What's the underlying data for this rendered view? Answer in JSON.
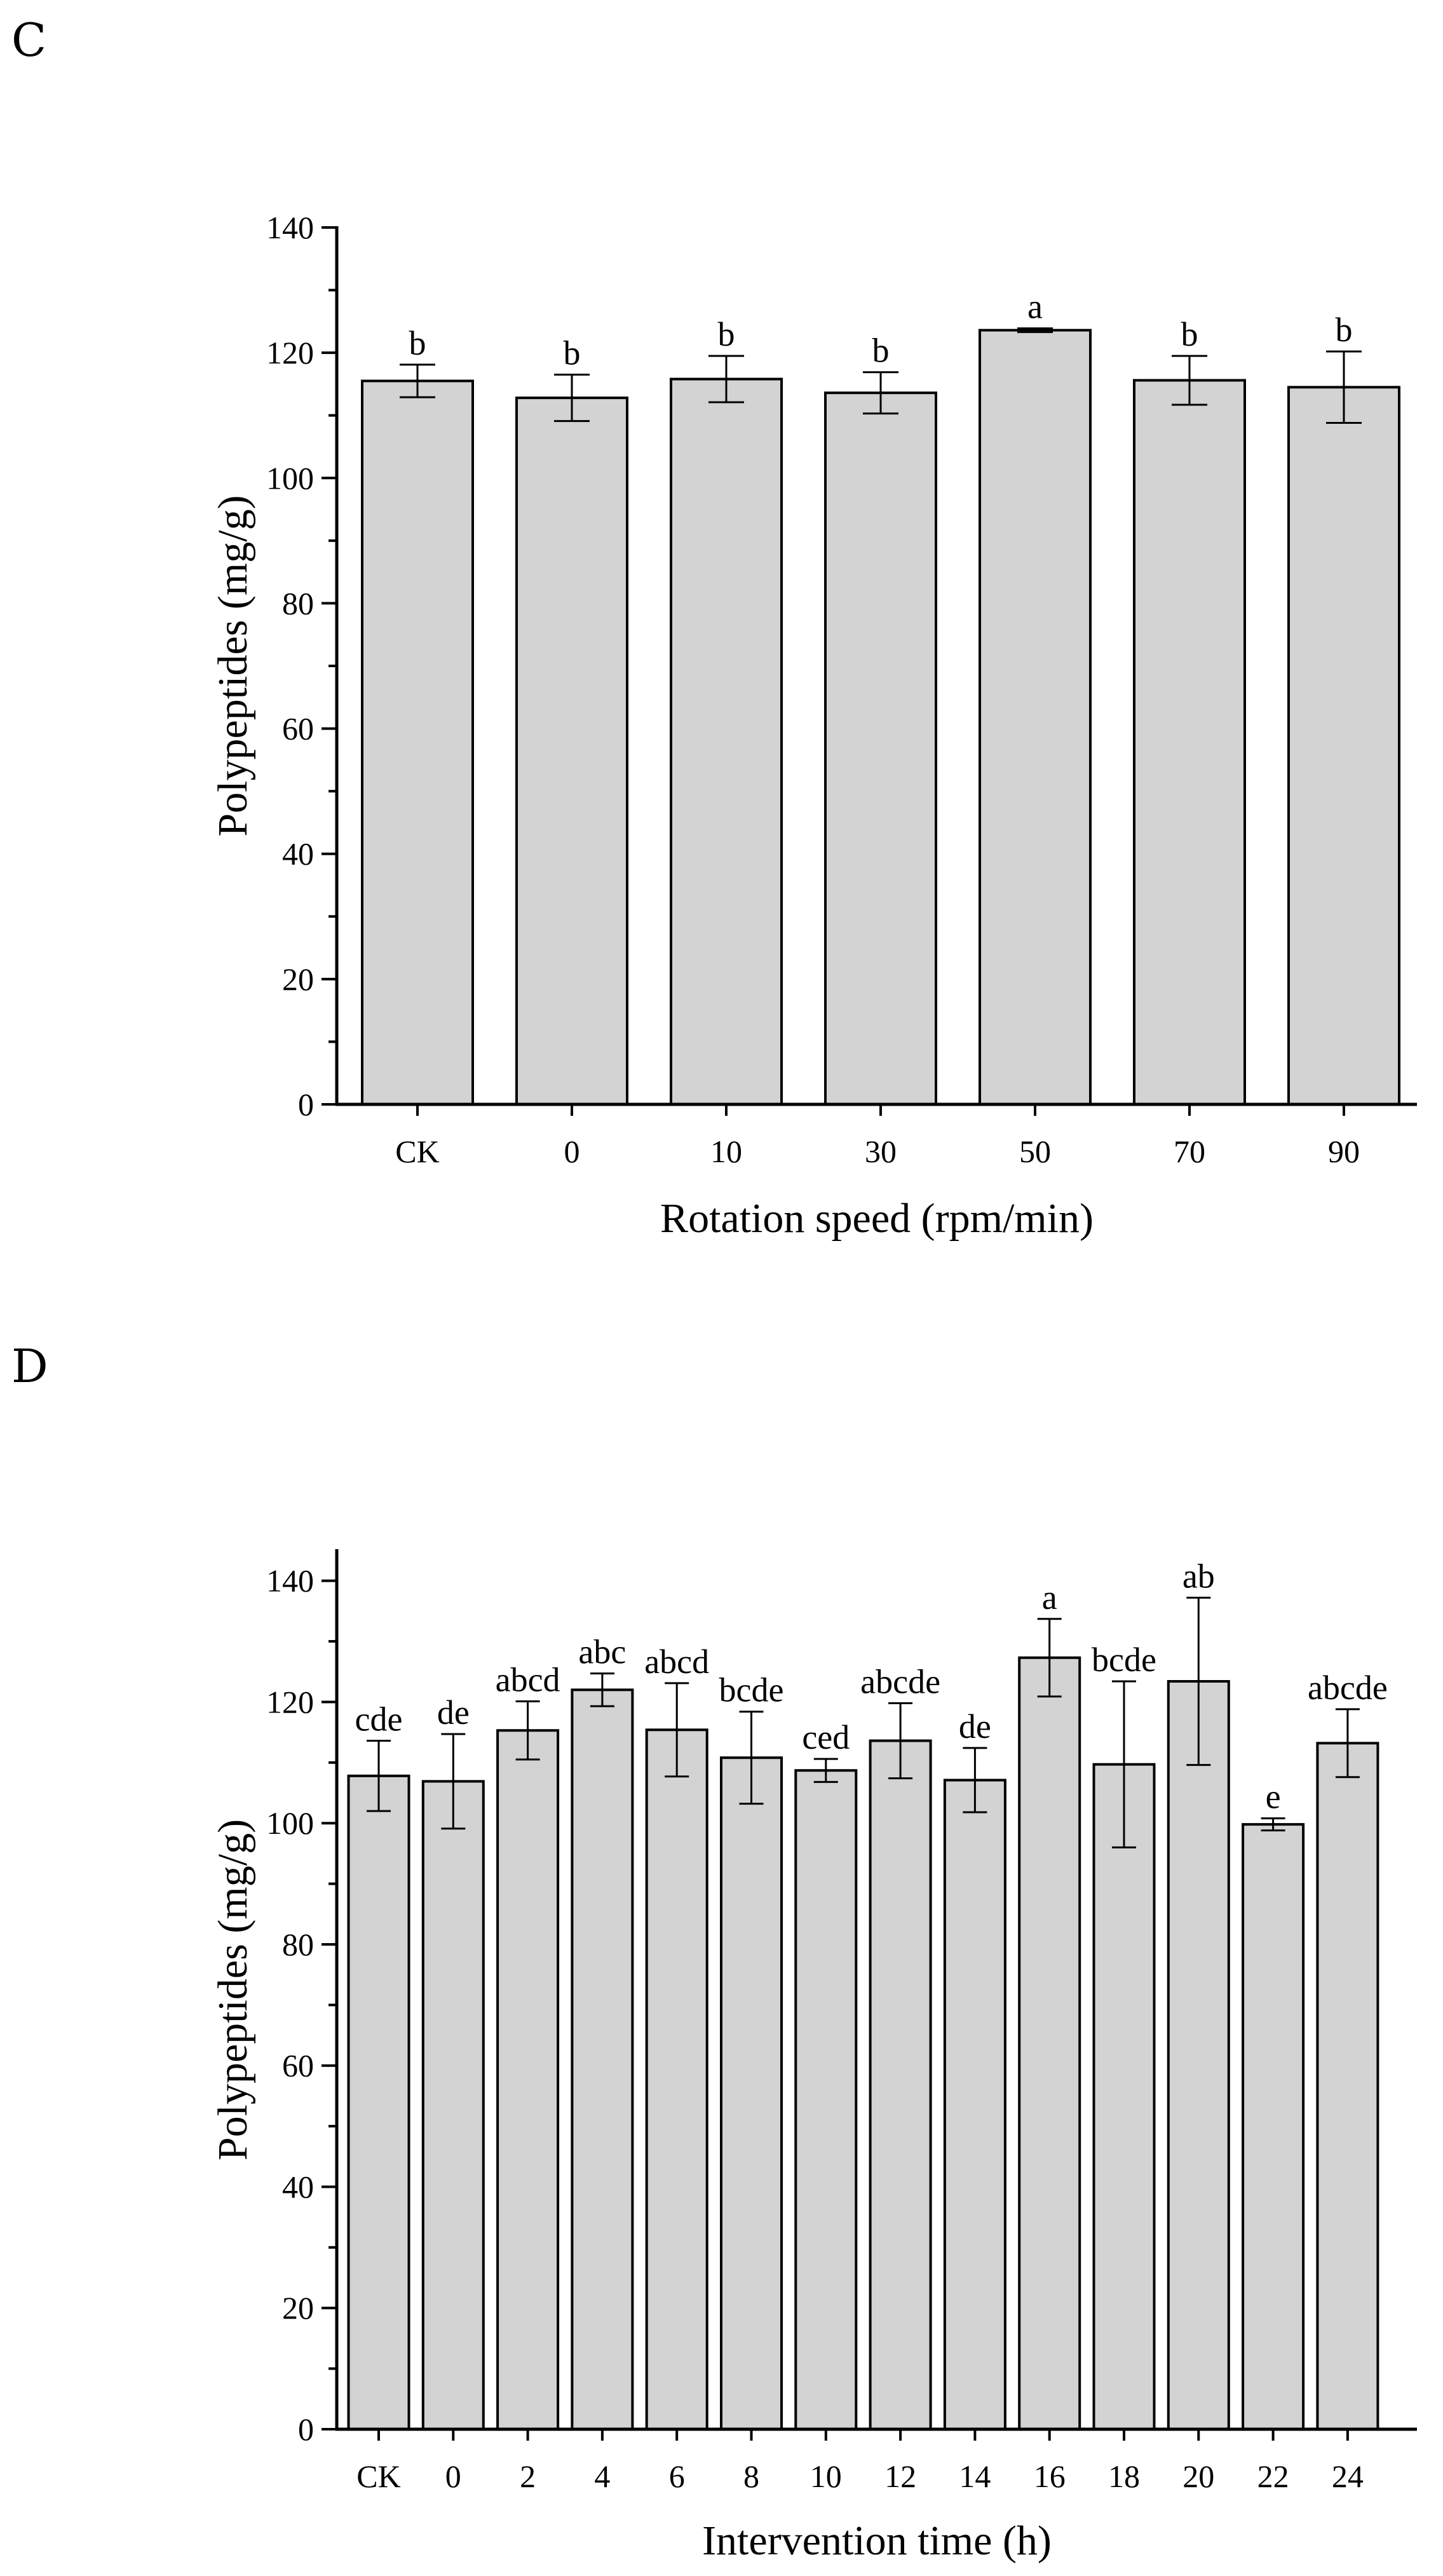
{
  "chart_data": [
    {
      "panel": "C",
      "type": "bar",
      "xlabel": "Rotation speed (rpm/min)",
      "ylabel": "Polypeptides (mg/g)",
      "ylim": [
        0,
        140
      ],
      "yticks": [
        0,
        20,
        40,
        60,
        80,
        100,
        120,
        140
      ],
      "categories": [
        "CK",
        "0",
        "10",
        "30",
        "50",
        "70",
        "90"
      ],
      "values": [
        115.5,
        112.8,
        115.8,
        113.6,
        123.6,
        115.6,
        114.5
      ],
      "errors": [
        2.6,
        3.7,
        3.7,
        3.3,
        0.3,
        3.9,
        5.7
      ],
      "significance": [
        "b",
        "b",
        "b",
        "b",
        "a",
        "b",
        "b"
      ]
    },
    {
      "panel": "D",
      "type": "bar",
      "xlabel": "Intervention time (h)",
      "ylabel": "Polypeptides (mg/g)",
      "ylim": [
        0,
        145
      ],
      "yticks": [
        0,
        20,
        40,
        60,
        80,
        100,
        120,
        140
      ],
      "categories": [
        "CK",
        "0",
        "2",
        "4",
        "6",
        "8",
        "10",
        "12",
        "14",
        "16",
        "18",
        "20",
        "22",
        "24"
      ],
      "values": [
        107.8,
        106.9,
        115.3,
        122.0,
        115.4,
        110.8,
        108.7,
        113.6,
        107.1,
        127.3,
        109.7,
        123.4,
        99.8,
        113.2
      ],
      "errors": [
        5.8,
        7.8,
        4.8,
        2.7,
        7.7,
        7.6,
        1.9,
        6.2,
        5.3,
        6.4,
        13.7,
        13.8,
        1.0,
        5.6
      ],
      "significance": [
        "cde",
        "de",
        "abcd",
        "abc",
        "abcd",
        "bcde",
        "ced",
        "abcde",
        "de",
        "a",
        "bcde",
        "ab",
        "e",
        "abcde"
      ]
    }
  ]
}
